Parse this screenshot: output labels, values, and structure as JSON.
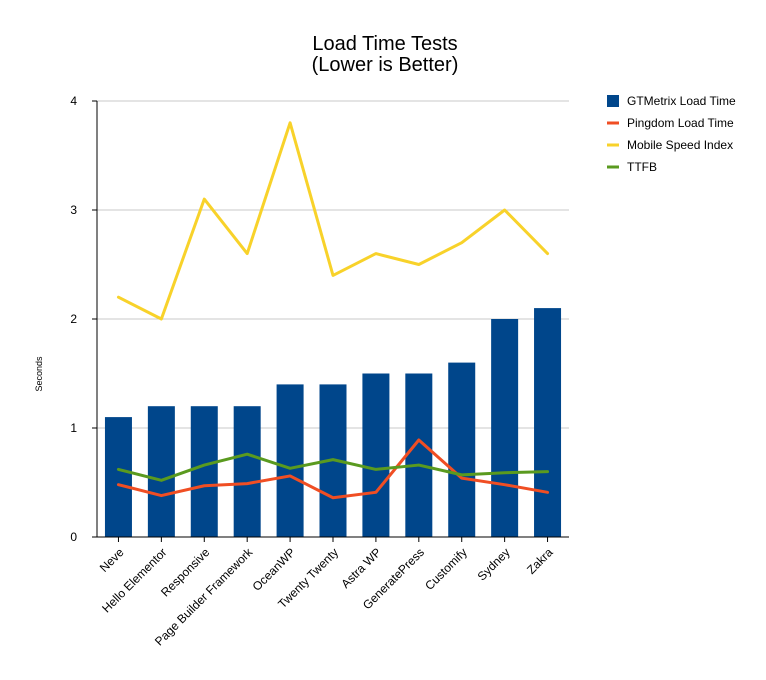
{
  "chart_data": {
    "type": "bar",
    "title": "Load Time Tests",
    "subtitle": "(Lower is Better)",
    "xlabel": "",
    "ylabel": "Seconds",
    "ylim": [
      0,
      4
    ],
    "yticks": [
      "0",
      "1",
      "2",
      "3",
      "4"
    ],
    "grid": true,
    "legend_position": "right",
    "categories": [
      "Neve",
      "Hello Elementor",
      "Responsive",
      "Page Builder Framework",
      "OceanWP",
      "Twenty Twenty",
      "Astra WP",
      "GeneratePress",
      "Customify",
      "Sydney",
      "Zakra"
    ],
    "series": [
      {
        "name": "GTMetrix Load Time",
        "type": "bar",
        "color": "#00468b",
        "values": [
          1.1,
          1.2,
          1.2,
          1.2,
          1.4,
          1.4,
          1.5,
          1.5,
          1.6,
          2.0,
          2.1
        ]
      },
      {
        "name": "Pingdom Load Time",
        "type": "line",
        "color": "#f04e23",
        "values": [
          0.48,
          0.38,
          0.47,
          0.49,
          0.56,
          0.36,
          0.41,
          0.89,
          0.54,
          0.48,
          0.41
        ]
      },
      {
        "name": "Mobile Speed Index",
        "type": "line",
        "color": "#f8d22a",
        "values": [
          2.2,
          2.0,
          3.1,
          2.6,
          3.8,
          2.4,
          2.6,
          2.5,
          2.7,
          3.0,
          2.6
        ]
      },
      {
        "name": "TTFB",
        "type": "line",
        "color": "#5a9a1f",
        "values": [
          0.62,
          0.52,
          0.66,
          0.76,
          0.63,
          0.71,
          0.62,
          0.66,
          0.57,
          0.59,
          0.6
        ]
      }
    ]
  }
}
